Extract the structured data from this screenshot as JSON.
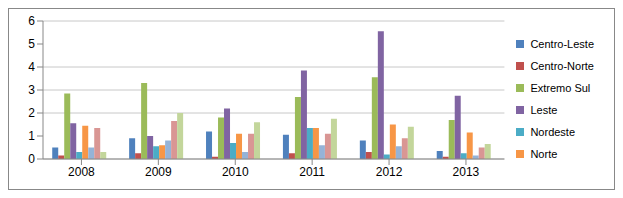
{
  "chart_data": {
    "type": "bar",
    "categories": [
      "2008",
      "2009",
      "2010",
      "2011",
      "2012",
      "2013"
    ],
    "series": [
      {
        "name": "Centro-Leste",
        "color": "#4F81BD",
        "values": [
          0.5,
          0.9,
          1.2,
          1.05,
          0.8,
          0.35
        ]
      },
      {
        "name": "Centro-Norte",
        "color": "#C0504D",
        "values": [
          0.15,
          0.25,
          0.1,
          0.25,
          0.3,
          0.1
        ]
      },
      {
        "name": "Extremo Sul",
        "color": "#9BBB59",
        "values": [
          2.85,
          3.3,
          1.8,
          2.7,
          3.55,
          1.7
        ]
      },
      {
        "name": "Leste",
        "color": "#8064A2",
        "values": [
          1.55,
          1.0,
          2.2,
          3.85,
          5.55,
          2.75
        ]
      },
      {
        "name": "Nordeste",
        "color": "#4BACC6",
        "values": [
          0.3,
          0.55,
          0.7,
          1.35,
          0.2,
          0.25
        ]
      },
      {
        "name": "Norte",
        "color": "#F79646",
        "values": [
          1.45,
          0.6,
          1.1,
          1.35,
          1.5,
          1.15
        ]
      },
      {
        "color": "#95B3D7",
        "values": [
          0.5,
          0.8,
          0.3,
          0.6,
          0.55,
          0.15
        ]
      },
      {
        "color": "#D99694",
        "values": [
          1.35,
          1.65,
          1.1,
          1.1,
          0.9,
          0.5
        ]
      },
      {
        "color": "#C3D69B",
        "values": [
          0.3,
          2.0,
          1.6,
          1.75,
          1.4,
          0.65
        ]
      }
    ],
    "ylim": [
      0,
      6
    ],
    "yticks": [
      0,
      1,
      2,
      3,
      4,
      5,
      6
    ],
    "grid": true,
    "legend": "right"
  }
}
